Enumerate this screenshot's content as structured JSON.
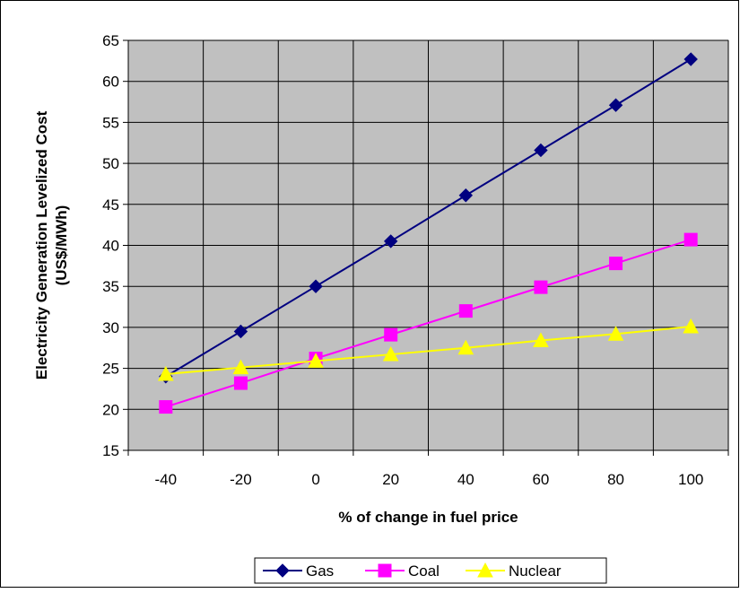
{
  "chart_data": {
    "type": "line",
    "title": "",
    "xlabel": "% of change in fuel price",
    "ylabel_line1": "Electricity Generation Levelized Cost",
    "ylabel_line2": "(US$/MWh)",
    "x": [
      -40,
      -20,
      0,
      20,
      40,
      60,
      80,
      100
    ],
    "xlim": [
      -50,
      110
    ],
    "ylim": [
      15,
      65
    ],
    "y_ticks": [
      15,
      20,
      25,
      30,
      35,
      40,
      45,
      50,
      55,
      60,
      65
    ],
    "grid": "both",
    "plot_background": "#c0c0c0",
    "legend_position": "bottom",
    "series": [
      {
        "name": "Gas",
        "color": "#000080",
        "marker": "diamond",
        "values": [
          24.0,
          29.5,
          35.0,
          40.5,
          46.1,
          51.6,
          57.1,
          62.7
        ]
      },
      {
        "name": "Coal",
        "color": "#ff00ff",
        "marker": "square",
        "values": [
          20.3,
          23.2,
          26.2,
          29.1,
          32.0,
          34.9,
          37.8,
          40.7
        ]
      },
      {
        "name": "Nuclear",
        "color": "#ffff00",
        "marker": "triangle",
        "values": [
          24.3,
          25.1,
          25.9,
          26.7,
          27.5,
          28.4,
          29.2,
          30.1
        ]
      }
    ]
  }
}
